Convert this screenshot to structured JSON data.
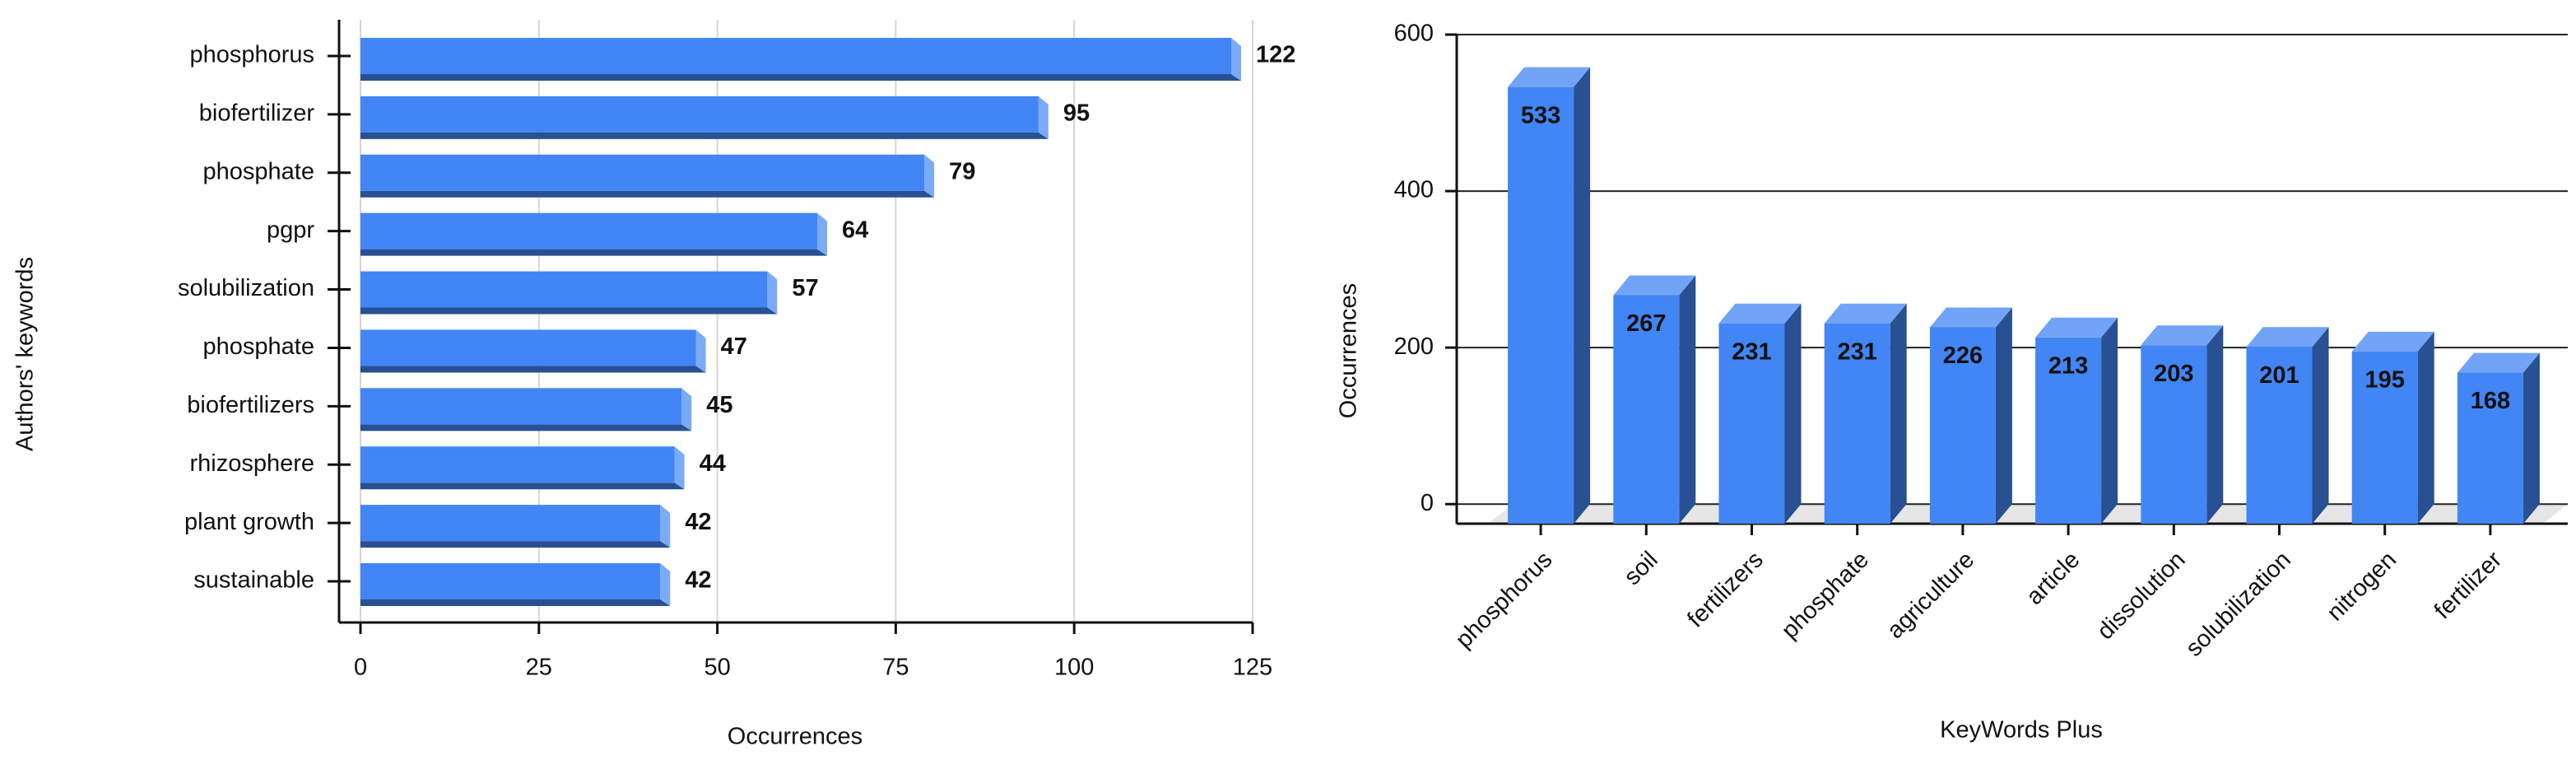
{
  "chart_data": [
    {
      "type": "barh",
      "ylabel": "Authors' keywords",
      "xlabel": "Occurrences",
      "categories": [
        "phosphorus",
        "biofertilizer",
        "phosphate",
        "pgpr",
        "solubilization",
        "phosphate",
        "biofertilizers",
        "rhizosphere",
        "plant growth",
        "sustainable"
      ],
      "values": [
        122,
        95,
        79,
        64,
        57,
        47,
        45,
        44,
        42,
        42
      ],
      "color": "#4285f4",
      "label_color": "#3b7ddd",
      "xlim": [
        -3,
        125
      ],
      "xticks": [
        0,
        25,
        50,
        75,
        100,
        125
      ],
      "grid": true
    },
    {
      "type": "bar",
      "xlabel": "KeyWords Plus",
      "ylabel": "Occurrences",
      "categories": [
        "phosphorus",
        "soil",
        "fertilizers",
        "phosphate",
        "agriculture",
        "article",
        "dissolution",
        "solubilization",
        "nitrogen",
        "fertilizer"
      ],
      "values": [
        533,
        267,
        231,
        231,
        226,
        213,
        203,
        201,
        195,
        168
      ],
      "color": "#4285f4",
      "label_color": "#ffffff",
      "ylim": [
        -25,
        600
      ],
      "yticks": [
        0,
        200,
        400,
        600
      ],
      "grid": true
    }
  ]
}
